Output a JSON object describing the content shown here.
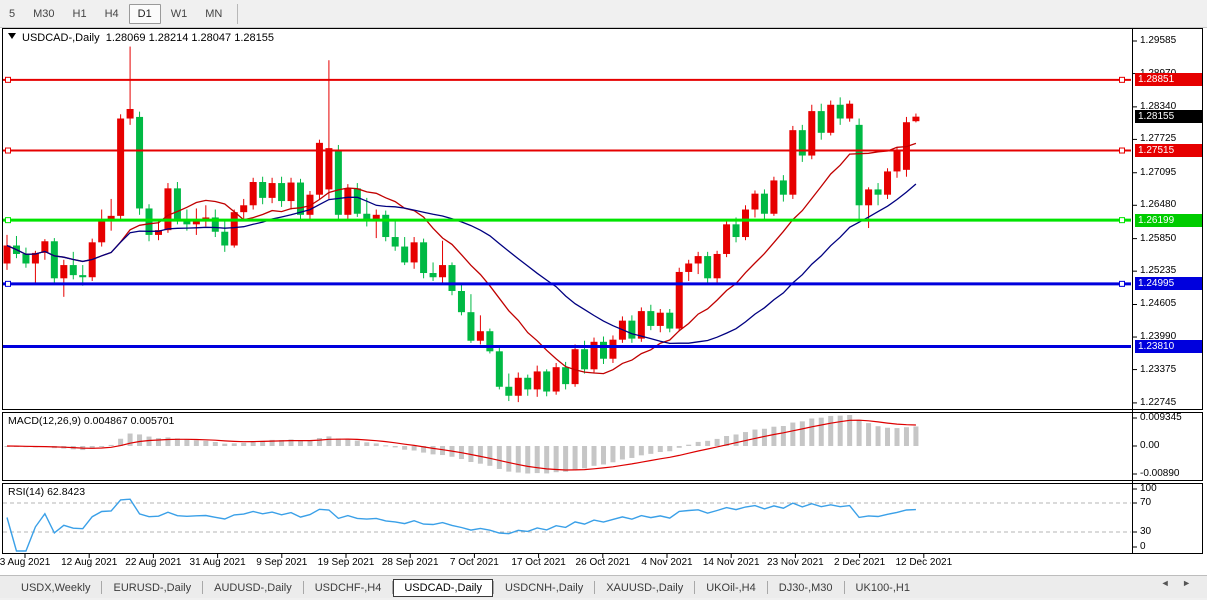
{
  "toolbar": {
    "timeframes": [
      "5",
      "M30",
      "H1",
      "H4",
      "D1",
      "W1",
      "MN"
    ],
    "active": "D1"
  },
  "chart": {
    "title_symbol": "USDCAD-,Daily",
    "title_ohlc": "1.28069 1.28214 1.28047 1.28155",
    "price_badges": [
      {
        "text": "1.28851",
        "price": 1.28851,
        "bg": "#e60000"
      },
      {
        "text": "1.28155",
        "price": 1.28155,
        "bg": "#000000"
      },
      {
        "text": "1.27515",
        "price": 1.27515,
        "bg": "#e60000"
      },
      {
        "text": "1.26199",
        "price": 1.26199,
        "bg": "#00cc00"
      },
      {
        "text": "1.24995",
        "price": 1.24995,
        "bg": "#0000dd"
      },
      {
        "text": "1.23810",
        "price": 1.2381,
        "bg": "#0000dd"
      }
    ]
  },
  "chart_data": {
    "type": "candlestick",
    "symbol": "USDCAD-",
    "timeframe": "Daily",
    "ohlc_display": {
      "open": "1.28069",
      "high": "1.28214",
      "low": "1.28047",
      "close": "1.28155"
    },
    "y_ticks": [
      "1.29585",
      "1.28970",
      "1.28340",
      "1.27725",
      "1.27095",
      "1.26480",
      "1.25850",
      "1.25235",
      "1.24605",
      "1.23990",
      "1.23375",
      "1.22745"
    ],
    "y_range": [
      1.2262,
      1.2972
    ],
    "x_labels": [
      "3 Aug 2021",
      "12 Aug 2021",
      "22 Aug 2021",
      "31 Aug 2021",
      "9 Sep 2021",
      "19 Sep 2021",
      "28 Sep 2021",
      "7 Oct 2021",
      "17 Oct 2021",
      "26 Oct 2021",
      "4 Nov 2021",
      "14 Nov 2021",
      "23 Nov 2021",
      "2 Dec 2021",
      "12 Dec 2021"
    ],
    "colors": {
      "bull": "#e60000",
      "bear": "#00b944",
      "background": "#ffffff"
    },
    "candles": [
      [
        1.2538,
        1.2592,
        1.2526,
        1.2572
      ],
      [
        1.2572,
        1.259,
        1.2548,
        1.2556
      ],
      [
        1.2556,
        1.2568,
        1.253,
        1.2538
      ],
      [
        1.2538,
        1.2562,
        1.25,
        1.2558
      ],
      [
        1.2558,
        1.2584,
        1.2545,
        1.258
      ],
      [
        1.258,
        1.2586,
        1.2498,
        1.251
      ],
      [
        1.251,
        1.2545,
        1.2475,
        1.2535
      ],
      [
        1.2535,
        1.256,
        1.2508,
        1.2516
      ],
      [
        1.2516,
        1.2535,
        1.2496,
        1.2512
      ],
      [
        1.2512,
        1.2585,
        1.2505,
        1.2578
      ],
      [
        1.2578,
        1.264,
        1.257,
        1.2622
      ],
      [
        1.2622,
        1.266,
        1.26,
        1.2628
      ],
      [
        1.2628,
        1.282,
        1.262,
        1.2812
      ],
      [
        1.2812,
        1.2948,
        1.28,
        1.283
      ],
      [
        1.2815,
        1.2825,
        1.263,
        1.2642
      ],
      [
        1.2642,
        1.265,
        1.258,
        1.2592
      ],
      [
        1.2592,
        1.2618,
        1.2582,
        1.2601
      ],
      [
        1.2601,
        1.269,
        1.2596,
        1.268
      ],
      [
        1.268,
        1.2692,
        1.2612,
        1.2622
      ],
      [
        1.2622,
        1.264,
        1.26,
        1.2612
      ],
      [
        1.2612,
        1.2642,
        1.2592,
        1.262
      ],
      [
        1.262,
        1.2648,
        1.2608,
        1.2625
      ],
      [
        1.2625,
        1.264,
        1.2588,
        1.2598
      ],
      [
        1.2598,
        1.262,
        1.256,
        1.2572
      ],
      [
        1.2572,
        1.264,
        1.2568,
        1.2635
      ],
      [
        1.2635,
        1.266,
        1.262,
        1.2648
      ],
      [
        1.2648,
        1.27,
        1.264,
        1.2692
      ],
      [
        1.2692,
        1.2702,
        1.265,
        1.2662
      ],
      [
        1.2662,
        1.27,
        1.2652,
        1.269
      ],
      [
        1.269,
        1.2702,
        1.2645,
        1.2656
      ],
      [
        1.2656,
        1.27,
        1.264,
        1.2691
      ],
      [
        1.2691,
        1.2698,
        1.2622,
        1.263
      ],
      [
        1.263,
        1.2675,
        1.2618,
        1.2668
      ],
      [
        1.2668,
        1.2772,
        1.266,
        1.2766
      ],
      [
        1.2678,
        1.2922,
        1.266,
        1.2756
      ],
      [
        1.2752,
        1.2762,
        1.2618,
        1.263
      ],
      [
        1.263,
        1.2688,
        1.262,
        1.268
      ],
      [
        1.268,
        1.269,
        1.2626,
        1.2632
      ],
      [
        1.2632,
        1.2662,
        1.2608,
        1.2618
      ],
      [
        1.2618,
        1.264,
        1.2586,
        1.263
      ],
      [
        1.263,
        1.2638,
        1.258,
        1.2588
      ],
      [
        1.2588,
        1.262,
        1.2562,
        1.257
      ],
      [
        1.257,
        1.2588,
        1.2535,
        1.254
      ],
      [
        1.254,
        1.2588,
        1.2528,
        1.2578
      ],
      [
        1.2578,
        1.2585,
        1.251,
        1.252
      ],
      [
        1.252,
        1.254,
        1.2505,
        1.2512
      ],
      [
        1.2512,
        1.2581,
        1.25,
        1.2535
      ],
      [
        1.2535,
        1.254,
        1.2478,
        1.2486
      ],
      [
        1.2486,
        1.2499,
        1.244,
        1.2446
      ],
      [
        1.2446,
        1.248,
        1.2388,
        1.2392
      ],
      [
        1.2392,
        1.244,
        1.2385,
        1.241
      ],
      [
        1.241,
        1.2415,
        1.2368,
        1.2372
      ],
      [
        1.2372,
        1.238,
        1.23,
        1.2305
      ],
      [
        1.2305,
        1.233,
        1.2278,
        1.2288
      ],
      [
        1.2288,
        1.2332,
        1.2276,
        1.2322
      ],
      [
        1.2322,
        1.2328,
        1.2288,
        1.23
      ],
      [
        1.23,
        1.2345,
        1.2286,
        1.2334
      ],
      [
        1.2334,
        1.2338,
        1.2287,
        1.2296
      ],
      [
        1.2296,
        1.235,
        1.229,
        1.2342
      ],
      [
        1.2342,
        1.2352,
        1.23,
        1.231
      ],
      [
        1.231,
        1.2385,
        1.2305,
        1.2376
      ],
      [
        1.2376,
        1.2392,
        1.233,
        1.2338
      ],
      [
        1.2338,
        1.2398,
        1.2332,
        1.239
      ],
      [
        1.239,
        1.24,
        1.2348,
        1.2358
      ],
      [
        1.2358,
        1.2402,
        1.235,
        1.2394
      ],
      [
        1.2394,
        1.2438,
        1.2388,
        1.243
      ],
      [
        1.243,
        1.244,
        1.2388,
        1.2396
      ],
      [
        1.2396,
        1.2455,
        1.239,
        1.2448
      ],
      [
        1.2448,
        1.246,
        1.2412,
        1.242
      ],
      [
        1.242,
        1.2452,
        1.2408,
        1.2445
      ],
      [
        1.2445,
        1.2452,
        1.2408,
        1.2415
      ],
      [
        1.2415,
        1.253,
        1.241,
        1.2522
      ],
      [
        1.2522,
        1.2545,
        1.2505,
        1.2538
      ],
      [
        1.2538,
        1.256,
        1.2518,
        1.2552
      ],
      [
        1.2552,
        1.256,
        1.25,
        1.251
      ],
      [
        1.251,
        1.2562,
        1.2502,
        1.2556
      ],
      [
        1.2556,
        1.262,
        1.255,
        1.2612
      ],
      [
        1.2612,
        1.2625,
        1.2578,
        1.2588
      ],
      [
        1.2588,
        1.2648,
        1.2582,
        1.264
      ],
      [
        1.264,
        1.2676,
        1.2625,
        1.267
      ],
      [
        1.267,
        1.2678,
        1.2618,
        1.2632
      ],
      [
        1.2632,
        1.2702,
        1.2628,
        1.2695
      ],
      [
        1.2695,
        1.2705,
        1.2655,
        1.2668
      ],
      [
        1.2668,
        1.2798,
        1.266,
        1.279
      ],
      [
        1.279,
        1.28,
        1.273,
        1.2742
      ],
      [
        1.2742,
        1.2838,
        1.2735,
        1.2826
      ],
      [
        1.2826,
        1.284,
        1.2772,
        1.2785
      ],
      [
        1.2785,
        1.2846,
        1.278,
        1.2838
      ],
      [
        1.2838,
        1.2852,
        1.28,
        1.2812
      ],
      [
        1.2812,
        1.2846,
        1.2806,
        1.284
      ],
      [
        1.28,
        1.2812,
        1.2621,
        1.2648
      ],
      [
        1.2648,
        1.2682,
        1.2605,
        1.2678
      ],
      [
        1.2678,
        1.269,
        1.2648,
        1.2668
      ],
      [
        1.2668,
        1.2718,
        1.266,
        1.2712
      ],
      [
        1.2712,
        1.2758,
        1.27,
        1.2752
      ],
      [
        1.2715,
        1.2815,
        1.2702,
        1.2805
      ],
      [
        1.28069,
        1.28214,
        1.28047,
        1.28155
      ]
    ],
    "hlines": [
      {
        "price": 1.28851,
        "color": "#e60000",
        "width": 2,
        "handles": true
      },
      {
        "price": 1.27515,
        "color": "#e60000",
        "width": 2,
        "handles": true
      },
      {
        "price": 1.26199,
        "color": "#00e400",
        "width": 3,
        "handles": true
      },
      {
        "price": 1.24995,
        "color": "#0000dd",
        "width": 3,
        "handles": true
      },
      {
        "price": 1.2381,
        "color": "#0000dd",
        "width": 3,
        "handles": false
      }
    ],
    "moving_averages": [
      {
        "period": 12,
        "color": "#c00000"
      },
      {
        "period": 26,
        "color": "#000080"
      }
    ],
    "indicators": [
      {
        "name": "MACD",
        "label": "MACD(12,26,9) 0.004867 0.005701",
        "params": [
          12,
          26,
          9
        ],
        "axis_ticks": [
          "0.009345",
          "0.00",
          "-0.00890"
        ],
        "histogram_color": "#c6c6c6",
        "signal_color": "#dd0000"
      },
      {
        "name": "RSI",
        "label": "RSI(14) 62.8423",
        "period": 14,
        "axis_ticks": [
          "100",
          "70",
          "30",
          "0"
        ],
        "levels": [
          70,
          30
        ],
        "line_color": "#3aa0e8"
      }
    ]
  },
  "tabs": {
    "items": [
      "USDX,Weekly",
      "EURUSD-,Daily",
      "AUDUSD-,Daily",
      "USDCHF-,H4",
      "USDCAD-,Daily",
      "USDCNH-,Daily",
      "XAUUSD-,Daily",
      "UKOil-,H4",
      "DJ30-,M30",
      "UK100-,H1"
    ],
    "active": "USDCAD-,Daily"
  },
  "tab_scroll": {
    "left": "◄",
    "right": "►"
  }
}
